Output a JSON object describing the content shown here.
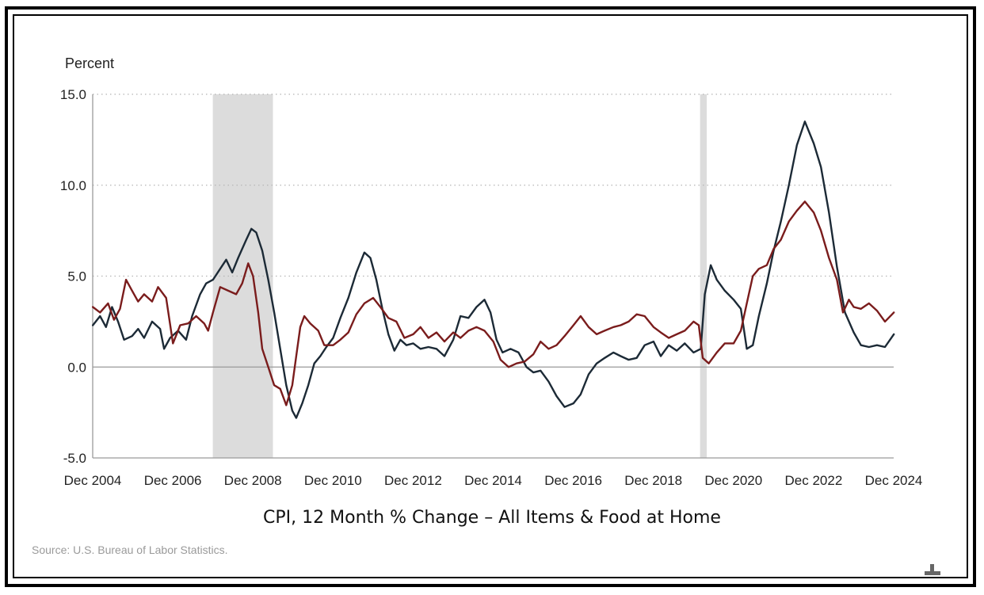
{
  "chart_data": {
    "type": "line",
    "title": "CPI, 12 Month % Change – All Items & Food at Home",
    "ylabel": "Percent",
    "ylim": [
      -5,
      15
    ],
    "yticks": [
      "15.0",
      "10.0",
      "5.0",
      "0.0",
      "-5.0"
    ],
    "ytick_values": [
      15,
      10,
      5,
      0,
      -5
    ],
    "xlim": [
      2004.917,
      2024.917
    ],
    "xticks": [
      "Dec 2004",
      "Dec 2006",
      "Dec 2008",
      "Dec 2010",
      "Dec 2012",
      "Dec 2014",
      "Dec 2016",
      "Dec 2018",
      "Dec 2020",
      "Dec 2022",
      "Dec 2024"
    ],
    "xtick_values": [
      2004.917,
      2006.917,
      2008.917,
      2010.917,
      2012.917,
      2014.917,
      2016.917,
      2018.917,
      2020.917,
      2022.917,
      2024.917
    ],
    "grid": "horizontal-dotted",
    "recessions": [
      [
        2007.917,
        2009.417
      ],
      [
        2020.083,
        2020.25
      ]
    ],
    "source": "Source: U.S. Bureau of Labor Statistics.",
    "series": [
      {
        "color": "#1c2a36",
        "points": [
          [
            2004.92,
            2.3
          ],
          [
            2005.1,
            2.8
          ],
          [
            2005.25,
            2.2
          ],
          [
            2005.4,
            3.3
          ],
          [
            2005.55,
            2.5
          ],
          [
            2005.7,
            1.5
          ],
          [
            2005.9,
            1.7
          ],
          [
            2006.05,
            2.1
          ],
          [
            2006.2,
            1.6
          ],
          [
            2006.4,
            2.5
          ],
          [
            2006.6,
            2.1
          ],
          [
            2006.7,
            1.0
          ],
          [
            2006.85,
            1.6
          ],
          [
            2007.05,
            2.0
          ],
          [
            2007.25,
            1.5
          ],
          [
            2007.4,
            2.8
          ],
          [
            2007.6,
            4.0
          ],
          [
            2007.75,
            4.6
          ],
          [
            2007.92,
            4.8
          ],
          [
            2008.1,
            5.4
          ],
          [
            2008.25,
            5.9
          ],
          [
            2008.4,
            5.2
          ],
          [
            2008.55,
            6.0
          ],
          [
            2008.75,
            7.0
          ],
          [
            2008.88,
            7.6
          ],
          [
            2009.0,
            7.4
          ],
          [
            2009.15,
            6.4
          ],
          [
            2009.3,
            4.8
          ],
          [
            2009.45,
            3.0
          ],
          [
            2009.6,
            1.0
          ],
          [
            2009.75,
            -1.0
          ],
          [
            2009.9,
            -2.4
          ],
          [
            2010.0,
            -2.8
          ],
          [
            2010.15,
            -2.0
          ],
          [
            2010.3,
            -1.0
          ],
          [
            2010.45,
            0.2
          ],
          [
            2010.6,
            0.6
          ],
          [
            2010.75,
            1.1
          ],
          [
            2010.92,
            1.6
          ],
          [
            2011.1,
            2.7
          ],
          [
            2011.3,
            3.8
          ],
          [
            2011.5,
            5.2
          ],
          [
            2011.7,
            6.3
          ],
          [
            2011.85,
            6.0
          ],
          [
            2012.0,
            4.8
          ],
          [
            2012.15,
            3.2
          ],
          [
            2012.3,
            1.8
          ],
          [
            2012.45,
            0.9
          ],
          [
            2012.6,
            1.5
          ],
          [
            2012.75,
            1.2
          ],
          [
            2012.92,
            1.3
          ],
          [
            2013.1,
            1.0
          ],
          [
            2013.3,
            1.1
          ],
          [
            2013.5,
            1.0
          ],
          [
            2013.7,
            0.6
          ],
          [
            2013.92,
            1.5
          ],
          [
            2014.1,
            2.8
          ],
          [
            2014.3,
            2.7
          ],
          [
            2014.5,
            3.3
          ],
          [
            2014.7,
            3.7
          ],
          [
            2014.85,
            3.0
          ],
          [
            2015.0,
            1.5
          ],
          [
            2015.15,
            0.8
          ],
          [
            2015.35,
            1.0
          ],
          [
            2015.55,
            0.8
          ],
          [
            2015.75,
            0.0
          ],
          [
            2015.92,
            -0.3
          ],
          [
            2016.1,
            -0.2
          ],
          [
            2016.3,
            -0.8
          ],
          [
            2016.5,
            -1.6
          ],
          [
            2016.7,
            -2.2
          ],
          [
            2016.92,
            -2.0
          ],
          [
            2017.1,
            -1.5
          ],
          [
            2017.3,
            -0.4
          ],
          [
            2017.5,
            0.2
          ],
          [
            2017.7,
            0.5
          ],
          [
            2017.92,
            0.8
          ],
          [
            2018.1,
            0.6
          ],
          [
            2018.3,
            0.4
          ],
          [
            2018.5,
            0.5
          ],
          [
            2018.7,
            1.2
          ],
          [
            2018.92,
            1.4
          ],
          [
            2019.1,
            0.6
          ],
          [
            2019.3,
            1.2
          ],
          [
            2019.5,
            0.9
          ],
          [
            2019.7,
            1.3
          ],
          [
            2019.92,
            0.8
          ],
          [
            2020.1,
            1.0
          ],
          [
            2020.2,
            4.0
          ],
          [
            2020.35,
            5.6
          ],
          [
            2020.5,
            4.8
          ],
          [
            2020.7,
            4.2
          ],
          [
            2020.92,
            3.7
          ],
          [
            2021.1,
            3.2
          ],
          [
            2021.25,
            1.0
          ],
          [
            2021.4,
            1.2
          ],
          [
            2021.55,
            2.8
          ],
          [
            2021.75,
            4.6
          ],
          [
            2021.92,
            6.4
          ],
          [
            2022.1,
            8.0
          ],
          [
            2022.3,
            10.0
          ],
          [
            2022.5,
            12.2
          ],
          [
            2022.7,
            13.5
          ],
          [
            2022.92,
            12.3
          ],
          [
            2023.1,
            11.0
          ],
          [
            2023.3,
            8.5
          ],
          [
            2023.5,
            5.5
          ],
          [
            2023.7,
            3.0
          ],
          [
            2023.92,
            1.9
          ],
          [
            2024.1,
            1.2
          ],
          [
            2024.3,
            1.1
          ],
          [
            2024.5,
            1.2
          ],
          [
            2024.7,
            1.1
          ],
          [
            2024.92,
            1.8
          ]
        ]
      },
      {
        "color": "#7a1c1c",
        "points": [
          [
            2004.92,
            3.3
          ],
          [
            2005.1,
            3.0
          ],
          [
            2005.3,
            3.5
          ],
          [
            2005.45,
            2.6
          ],
          [
            2005.6,
            3.2
          ],
          [
            2005.75,
            4.8
          ],
          [
            2005.9,
            4.2
          ],
          [
            2006.05,
            3.6
          ],
          [
            2006.2,
            4.0
          ],
          [
            2006.4,
            3.6
          ],
          [
            2006.55,
            4.4
          ],
          [
            2006.75,
            3.8
          ],
          [
            2006.92,
            1.3
          ],
          [
            2007.1,
            2.3
          ],
          [
            2007.3,
            2.4
          ],
          [
            2007.5,
            2.8
          ],
          [
            2007.7,
            2.4
          ],
          [
            2007.8,
            2.0
          ],
          [
            2007.92,
            3.0
          ],
          [
            2008.1,
            4.4
          ],
          [
            2008.3,
            4.2
          ],
          [
            2008.5,
            4.0
          ],
          [
            2008.65,
            4.6
          ],
          [
            2008.8,
            5.7
          ],
          [
            2008.92,
            5.0
          ],
          [
            2009.05,
            3.0
          ],
          [
            2009.15,
            1.0
          ],
          [
            2009.3,
            0.0
          ],
          [
            2009.45,
            -1.0
          ],
          [
            2009.6,
            -1.2
          ],
          [
            2009.75,
            -2.1
          ],
          [
            2009.9,
            -1.0
          ],
          [
            2010.0,
            0.6
          ],
          [
            2010.1,
            2.2
          ],
          [
            2010.2,
            2.8
          ],
          [
            2010.35,
            2.4
          ],
          [
            2010.55,
            2.0
          ],
          [
            2010.7,
            1.2
          ],
          [
            2010.92,
            1.2
          ],
          [
            2011.1,
            1.5
          ],
          [
            2011.3,
            1.9
          ],
          [
            2011.5,
            2.9
          ],
          [
            2011.7,
            3.5
          ],
          [
            2011.92,
            3.8
          ],
          [
            2012.1,
            3.3
          ],
          [
            2012.3,
            2.7
          ],
          [
            2012.5,
            2.5
          ],
          [
            2012.7,
            1.6
          ],
          [
            2012.92,
            1.8
          ],
          [
            2013.1,
            2.2
          ],
          [
            2013.3,
            1.6
          ],
          [
            2013.5,
            1.9
          ],
          [
            2013.7,
            1.4
          ],
          [
            2013.92,
            1.9
          ],
          [
            2014.1,
            1.6
          ],
          [
            2014.3,
            2.0
          ],
          [
            2014.5,
            2.2
          ],
          [
            2014.7,
            2.0
          ],
          [
            2014.92,
            1.4
          ],
          [
            2015.1,
            0.4
          ],
          [
            2015.3,
            0.0
          ],
          [
            2015.5,
            0.2
          ],
          [
            2015.7,
            0.3
          ],
          [
            2015.92,
            0.7
          ],
          [
            2016.1,
            1.4
          ],
          [
            2016.3,
            1.0
          ],
          [
            2016.5,
            1.2
          ],
          [
            2016.7,
            1.7
          ],
          [
            2016.92,
            2.3
          ],
          [
            2017.1,
            2.8
          ],
          [
            2017.3,
            2.2
          ],
          [
            2017.5,
            1.8
          ],
          [
            2017.7,
            2.0
          ],
          [
            2017.92,
            2.2
          ],
          [
            2018.1,
            2.3
          ],
          [
            2018.3,
            2.5
          ],
          [
            2018.5,
            2.9
          ],
          [
            2018.7,
            2.8
          ],
          [
            2018.92,
            2.2
          ],
          [
            2019.1,
            1.9
          ],
          [
            2019.3,
            1.6
          ],
          [
            2019.5,
            1.8
          ],
          [
            2019.7,
            2.0
          ],
          [
            2019.92,
            2.5
          ],
          [
            2020.05,
            2.3
          ],
          [
            2020.15,
            0.5
          ],
          [
            2020.3,
            0.2
          ],
          [
            2020.5,
            0.8
          ],
          [
            2020.7,
            1.3
          ],
          [
            2020.92,
            1.3
          ],
          [
            2021.1,
            2.0
          ],
          [
            2021.25,
            3.5
          ],
          [
            2021.4,
            5.0
          ],
          [
            2021.55,
            5.4
          ],
          [
            2021.75,
            5.6
          ],
          [
            2021.92,
            6.5
          ],
          [
            2022.1,
            7.0
          ],
          [
            2022.3,
            8.0
          ],
          [
            2022.5,
            8.6
          ],
          [
            2022.7,
            9.1
          ],
          [
            2022.92,
            8.5
          ],
          [
            2023.1,
            7.5
          ],
          [
            2023.3,
            6.0
          ],
          [
            2023.5,
            4.8
          ],
          [
            2023.65,
            3.0
          ],
          [
            2023.8,
            3.7
          ],
          [
            2023.92,
            3.3
          ],
          [
            2024.1,
            3.2
          ],
          [
            2024.3,
            3.5
          ],
          [
            2024.5,
            3.1
          ],
          [
            2024.7,
            2.5
          ],
          [
            2024.92,
            3.0
          ]
        ]
      }
    ]
  }
}
